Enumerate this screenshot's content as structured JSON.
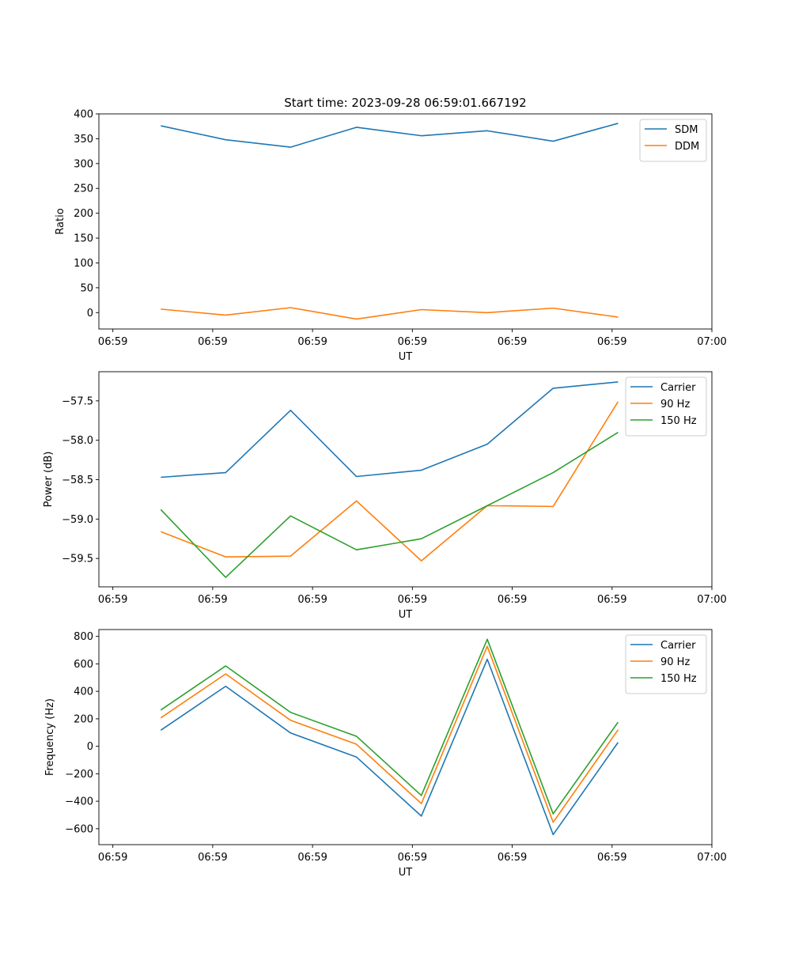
{
  "chart_data": [
    {
      "type": "line",
      "title": "Start time: 2023-09-28 06:59:01.667192",
      "xlabel": "UT",
      "ylabel": "Ratio",
      "x_ticks": [
        "06:59",
        "06:59",
        "06:59",
        "06:59",
        "06:59",
        "06:59",
        "07:00"
      ],
      "y_ticks": [
        "0",
        "50",
        "100",
        "150",
        "200",
        "250",
        "300",
        "350",
        "400"
      ],
      "x_tick_values": [
        0,
        1,
        2,
        3,
        4,
        5,
        6
      ],
      "y_tick_values": [
        0,
        50,
        100,
        150,
        200,
        250,
        300,
        350,
        400
      ],
      "xlim": [
        -0.14,
        6.0
      ],
      "ylim": [
        -33,
        400
      ],
      "x": [
        0.48,
        1.13,
        1.78,
        2.44,
        3.09,
        3.75,
        4.41,
        5.06
      ],
      "series": [
        {
          "name": "SDM",
          "color": "#1f77b4",
          "values": [
            376,
            348,
            333,
            373,
            356,
            366,
            345,
            381
          ]
        },
        {
          "name": "DDM",
          "color": "#ff7f0e",
          "values": [
            7,
            -5,
            10,
            -13,
            6,
            0,
            9,
            -9
          ]
        }
      ],
      "legend": "top-right"
    },
    {
      "type": "line",
      "title": "",
      "xlabel": "UT",
      "ylabel": "Power (dB)",
      "x_ticks": [
        "06:59",
        "06:59",
        "06:59",
        "06:59",
        "06:59",
        "06:59",
        "07:00"
      ],
      "y_ticks": [
        "−59.5",
        "−59.0",
        "−58.5",
        "−58.0",
        "−57.5"
      ],
      "x_tick_values": [
        0,
        1,
        2,
        3,
        4,
        5,
        6
      ],
      "y_tick_values": [
        -59.5,
        -59.0,
        -58.5,
        -58.0,
        -57.5
      ],
      "xlim": [
        -0.14,
        6.0
      ],
      "ylim": [
        -59.86,
        -57.13
      ],
      "x": [
        0.48,
        1.13,
        1.78,
        2.44,
        3.09,
        3.75,
        4.41,
        5.06
      ],
      "series": [
        {
          "name": "Carrier",
          "color": "#1f77b4",
          "values": [
            -58.47,
            -58.41,
            -57.62,
            -58.46,
            -58.38,
            -58.05,
            -57.34,
            -57.26
          ]
        },
        {
          "name": "90 Hz",
          "color": "#ff7f0e",
          "values": [
            -59.16,
            -59.48,
            -59.47,
            -58.77,
            -59.53,
            -58.83,
            -58.84,
            -57.51
          ]
        },
        {
          "name": "150 Hz",
          "color": "#2ca02c",
          "values": [
            -58.88,
            -59.74,
            -58.96,
            -59.39,
            -59.25,
            -58.83,
            -58.41,
            -57.9
          ]
        }
      ],
      "legend": "top-right"
    },
    {
      "type": "line",
      "title": "",
      "xlabel": "UT",
      "ylabel": "Frequency (Hz)",
      "x_ticks": [
        "06:59",
        "06:59",
        "06:59",
        "06:59",
        "06:59",
        "06:59",
        "07:00"
      ],
      "y_ticks": [
        "−600",
        "−400",
        "−200",
        "0",
        "200",
        "400",
        "600",
        "800"
      ],
      "x_tick_values": [
        0,
        1,
        2,
        3,
        4,
        5,
        6
      ],
      "y_tick_values": [
        -600,
        -400,
        -200,
        0,
        200,
        400,
        600,
        800
      ],
      "xlim": [
        -0.14,
        6.0
      ],
      "ylim": [
        -716,
        850
      ],
      "x": [
        0.48,
        1.13,
        1.78,
        2.44,
        3.09,
        3.75,
        4.41,
        5.06
      ],
      "series": [
        {
          "name": "Carrier",
          "color": "#1f77b4",
          "values": [
            117,
            437,
            97,
            -78,
            -508,
            634,
            -643,
            28
          ]
        },
        {
          "name": "90 Hz",
          "color": "#ff7f0e",
          "values": [
            207,
            527,
            189,
            15,
            -417,
            728,
            -553,
            120
          ]
        },
        {
          "name": "150 Hz",
          "color": "#2ca02c",
          "values": [
            264,
            585,
            247,
            73,
            -358,
            779,
            -492,
            176
          ]
        }
      ],
      "legend": "top-right"
    }
  ]
}
